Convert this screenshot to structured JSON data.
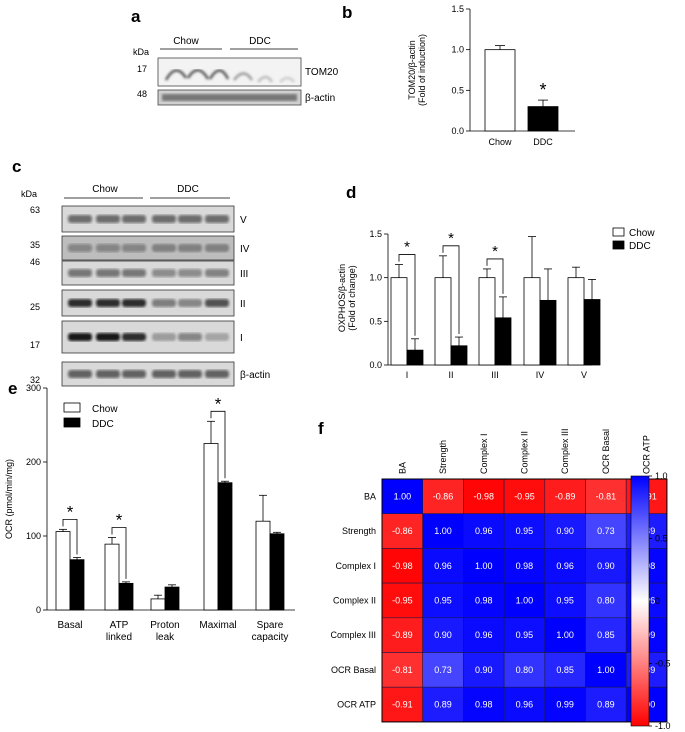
{
  "panels": {
    "a": {
      "letter": "a",
      "kda": "kDa",
      "groups": [
        "Chow",
        "DDC"
      ],
      "markers": [
        "17",
        "48"
      ],
      "bands": [
        "TOM20",
        "β-actin"
      ]
    },
    "c": {
      "letter": "c",
      "kda": "kDa",
      "groups": [
        "Chow",
        "DDC"
      ],
      "markers": [
        "63",
        "35",
        "46",
        "25",
        "17",
        "32"
      ],
      "bands": [
        "V",
        "IV",
        "III",
        "II",
        "I",
        "β-actin"
      ]
    }
  },
  "chart_data": [
    {
      "panel": "b",
      "type": "bar",
      "categories": [
        "Chow",
        "DDC"
      ],
      "values": [
        1.0,
        0.3
      ],
      "errors": [
        0.05,
        0.08
      ],
      "colors": [
        "#ffffff",
        "#000000"
      ],
      "ylabel": "TOM20/β-actin\n(Fold of induction)",
      "ylim": [
        0,
        1.5
      ],
      "yticks": [
        "0.0",
        "0.5",
        "1.0",
        "1.5"
      ],
      "significance": [
        {
          "category": "DDC",
          "mark": "*"
        }
      ]
    },
    {
      "panel": "d",
      "type": "bar",
      "categories": [
        "I",
        "II",
        "III",
        "IV",
        "V"
      ],
      "series": [
        {
          "name": "Chow",
          "color": "#ffffff",
          "values": [
            1.0,
            1.0,
            1.0,
            1.0,
            1.0
          ],
          "errors": [
            0.15,
            0.25,
            0.1,
            0.47,
            0.12
          ]
        },
        {
          "name": "DDC",
          "color": "#000000",
          "values": [
            0.17,
            0.22,
            0.54,
            0.74,
            0.75
          ],
          "errors": [
            0.13,
            0.1,
            0.24,
            0.36,
            0.23
          ]
        }
      ],
      "ylabel": "OXPHOS/β-actin\n(Fold of change)",
      "ylim": [
        0,
        1.5
      ],
      "yticks": [
        "0.0",
        "0.5",
        "1.0",
        "1.5"
      ],
      "legend": "top-right",
      "significance": [
        "I",
        "II",
        "III"
      ],
      "sig_mark": "*"
    },
    {
      "panel": "e",
      "type": "bar",
      "categories": [
        "Basal",
        "ATP linked",
        "Proton leak",
        "Maximal",
        "Spare capacity"
      ],
      "series": [
        {
          "name": "Chow",
          "color": "#ffffff",
          "values": [
            106,
            89,
            15,
            225,
            120
          ],
          "errors": [
            3,
            9,
            5,
            30,
            35
          ]
        },
        {
          "name": "DDC",
          "color": "#000000",
          "values": [
            68,
            36,
            31,
            172,
            103
          ],
          "errors": [
            3,
            2,
            3,
            2,
            2
          ]
        }
      ],
      "ylabel": "OCR (pmol/min/mg)",
      "ylim": [
        0,
        300
      ],
      "yticks": [
        "0",
        "100",
        "200",
        "300"
      ],
      "legend": "top-left",
      "significance": [
        "Basal",
        "ATP linked",
        "Maximal"
      ],
      "sig_mark": "*"
    },
    {
      "panel": "f",
      "type": "heatmap",
      "labels": [
        "BA",
        "Strength",
        "Complex I",
        "Complex II",
        "Complex III",
        "OCR Basal",
        "OCR ATP"
      ],
      "values": [
        [
          1.0,
          -0.86,
          -0.98,
          -0.95,
          -0.89,
          -0.81,
          -0.91
        ],
        [
          -0.86,
          1.0,
          0.96,
          0.95,
          0.9,
          0.73,
          0.89
        ],
        [
          -0.98,
          0.96,
          1.0,
          0.98,
          0.96,
          0.9,
          0.98
        ],
        [
          -0.95,
          0.95,
          0.98,
          1.0,
          0.95,
          0.8,
          0.96
        ],
        [
          -0.89,
          0.9,
          0.96,
          0.95,
          1.0,
          0.85,
          0.99
        ],
        [
          -0.81,
          0.73,
          0.9,
          0.8,
          0.85,
          1.0,
          0.89
        ],
        [
          -0.91,
          0.89,
          0.98,
          0.96,
          0.99,
          0.89,
          1.0
        ]
      ],
      "colorbar": {
        "range": [
          -1.0,
          1.0
        ],
        "ticks": [
          "1.0",
          "0.5",
          "0",
          "-0.5",
          "-1.0"
        ],
        "colors": [
          "#ff0000",
          "#ffffff",
          "#0000ff"
        ]
      }
    }
  ]
}
